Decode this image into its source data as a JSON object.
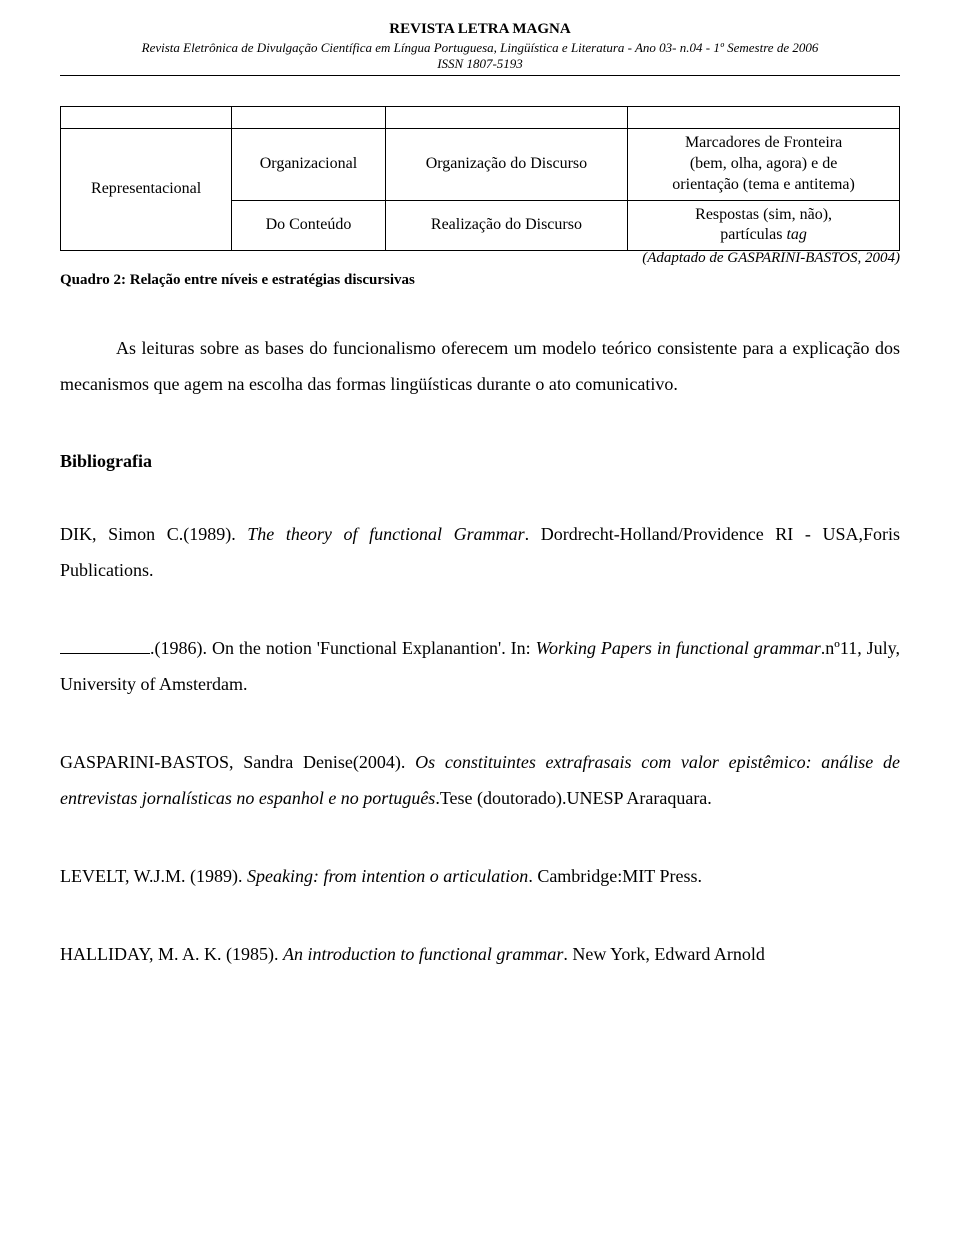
{
  "header": {
    "title": "REVISTA LETRA MAGNA",
    "subtitle": "Revista Eletrônica de Divulgação Científica em Língua Portuguesa, Lingüística e Literatura - Ano 03- n.04 - 1º Semestre de 2006",
    "issn": "ISSN 1807-5193"
  },
  "table": {
    "col1_rowspan": "Representacional",
    "row1": {
      "c2": "Organizacional",
      "c3": "Organização do Discurso",
      "c4_l1": "Marcadores de Fronteira",
      "c4_l2": "(bem, olha, agora) e de",
      "c4_l3": "orientação (tema e antitema)"
    },
    "row2": {
      "c2": "Do Conteúdo",
      "c3": "Realização do Discurso",
      "c4_l1": "Respostas (sim, não),",
      "c4_l2_a": "partículas ",
      "c4_l2_b": "tag"
    },
    "caption": "Quadro 2: Relação entre níveis e estratégias discursivas",
    "adapt": "(Adaptado de GASPARINI-BASTOS, 2004)"
  },
  "para": "As leituras sobre as bases do funcionalismo oferecem um modelo teórico consistente para a explicação dos mecanismos que agem na escolha das formas lingüísticas durante o ato comunicativo.",
  "biblio_heading": "Bibliografia",
  "refs": {
    "r1_a": "DIK, Simon C.(1989). ",
    "r1_b": "The theory of functional Grammar",
    "r1_c": ". Dordrecht-Holland/Providence RI - USA,Foris Publications.",
    "r2_a": ".(1986). On the notion 'Functional Explanantion'. In: ",
    "r2_b": "Working Papers in functional grammar",
    "r2_c": ".nº11, July, University of Amsterdam.",
    "r3_a": "GASPARINI-BASTOS, Sandra Denise(2004). ",
    "r3_b": "Os constituintes extrafrasais com valor epistêmico: análise de entrevistas jornalísticas no espanhol e no português",
    "r3_c": ".Tese (doutorado).UNESP Araraquara.",
    "r4_a": "LEVELT, W.J.M. (1989). ",
    "r4_b": "Speaking: from intention o articulation",
    "r4_c": ". Cambridge:MIT Press.",
    "r5_a": "HALLIDAY, M. A. K. (1985). ",
    "r5_b": "An introduction to functional grammar",
    "r5_c": ". New York, Edward Arnold"
  }
}
